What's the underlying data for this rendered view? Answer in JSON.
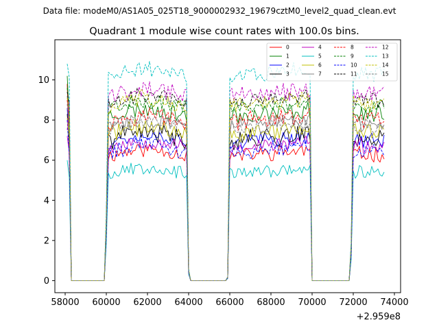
{
  "chart_data": {
    "type": "line",
    "suptitle": "Data file: modeM0/AS1A05_025T18_9000002932_19679cztM0_level2_quad_clean.evt",
    "title": "Quadrant 1 module wise count rates with 100.0s bins.",
    "xlabel": "",
    "ylabel": "",
    "x_offset_label": "+2.959e8",
    "xlim": [
      57500,
      74300
    ],
    "ylim": [
      -0.6,
      12.0
    ],
    "x_ticks": [
      58000,
      60000,
      62000,
      64000,
      66000,
      68000,
      70000,
      72000,
      74000
    ],
    "x_tick_labels": [
      "58000",
      "60000",
      "62000",
      "64000",
      "66000",
      "68000",
      "70000",
      "72000",
      "74000"
    ],
    "y_ticks": [
      0,
      2,
      4,
      6,
      8,
      10
    ],
    "y_tick_labels": [
      "0",
      "2",
      "4",
      "6",
      "8",
      "10"
    ],
    "bin_size_s": 100,
    "x_start": 58100,
    "x_end": 73500,
    "active_intervals": [
      [
        58100,
        58200
      ],
      [
        60100,
        63900
      ],
      [
        66000,
        69900
      ],
      [
        72000,
        73500
      ]
    ],
    "gap_intervals": [
      [
        58300,
        60000
      ],
      [
        64100,
        65900
      ],
      [
        70000,
        71900
      ]
    ],
    "ramp_points": [
      {
        "x": 58250,
        "frac": 0.03
      },
      {
        "x": 60000,
        "frac": 0.35
      },
      {
        "x": 64000,
        "frac": 0.06
      },
      {
        "x": 65900,
        "frac": 0.02
      },
      {
        "x": 71900,
        "frac": 0.2
      }
    ],
    "series": [
      {
        "name": "0",
        "color": "#ff0000",
        "dash": "solid",
        "start": 9.8,
        "base": 6.2,
        "amp": 0.35,
        "seed": 11
      },
      {
        "name": "1",
        "color": "#008000",
        "dash": "solid",
        "start": 10.2,
        "base": 8.2,
        "amp": 0.4,
        "seed": 23
      },
      {
        "name": "2",
        "color": "#0000ff",
        "dash": "solid",
        "start": 8.6,
        "base": 6.9,
        "amp": 0.35,
        "seed": 37
      },
      {
        "name": "3",
        "color": "#000000",
        "dash": "solid",
        "start": 8.3,
        "base": 7.0,
        "amp": 0.45,
        "seed": 41
      },
      {
        "name": "4",
        "color": "#bf00bf",
        "dash": "solid",
        "start": 7.2,
        "base": 6.6,
        "amp": 0.35,
        "seed": 53
      },
      {
        "name": "5",
        "color": "#00bfbf",
        "dash": "solid",
        "start": 6.0,
        "base": 5.3,
        "amp": 0.3,
        "seed": 67
      },
      {
        "name": "6",
        "color": "#bfbf00",
        "dash": "solid",
        "start": 8.1,
        "base": 7.3,
        "amp": 0.4,
        "seed": 71
      },
      {
        "name": "7",
        "color": "#808080",
        "dash": "solid",
        "start": 9.2,
        "base": 7.7,
        "amp": 0.35,
        "seed": 83
      },
      {
        "name": "8",
        "color": "#ff0000",
        "dash": "dashed",
        "start": 9.0,
        "base": 7.9,
        "amp": 0.4,
        "seed": 97
      },
      {
        "name": "9",
        "color": "#008000",
        "dash": "dashed",
        "start": 9.6,
        "base": 8.6,
        "amp": 0.35,
        "seed": 101
      },
      {
        "name": "10",
        "color": "#0000ff",
        "dash": "dashed",
        "start": 8.0,
        "base": 6.4,
        "amp": 0.35,
        "seed": 113
      },
      {
        "name": "11",
        "color": "#000000",
        "dash": "dashed",
        "start": 9.4,
        "base": 8.9,
        "amp": 0.35,
        "seed": 127
      },
      {
        "name": "12",
        "color": "#bf00bf",
        "dash": "dashed",
        "start": 7.5,
        "base": 9.2,
        "amp": 0.4,
        "seed": 131
      },
      {
        "name": "13",
        "color": "#00bfbf",
        "dash": "dashed",
        "start": 10.8,
        "base": 10.2,
        "amp": 0.35,
        "seed": 149
      },
      {
        "name": "14",
        "color": "#bfbf00",
        "dash": "dashed",
        "start": 9.1,
        "base": 8.7,
        "amp": 0.4,
        "seed": 151
      },
      {
        "name": "15",
        "color": "#808080",
        "dash": "dashed",
        "start": 8.8,
        "base": 7.6,
        "amp": 0.35,
        "seed": 163
      }
    ],
    "legend_position": "upper right",
    "legend_columns": 4
  }
}
